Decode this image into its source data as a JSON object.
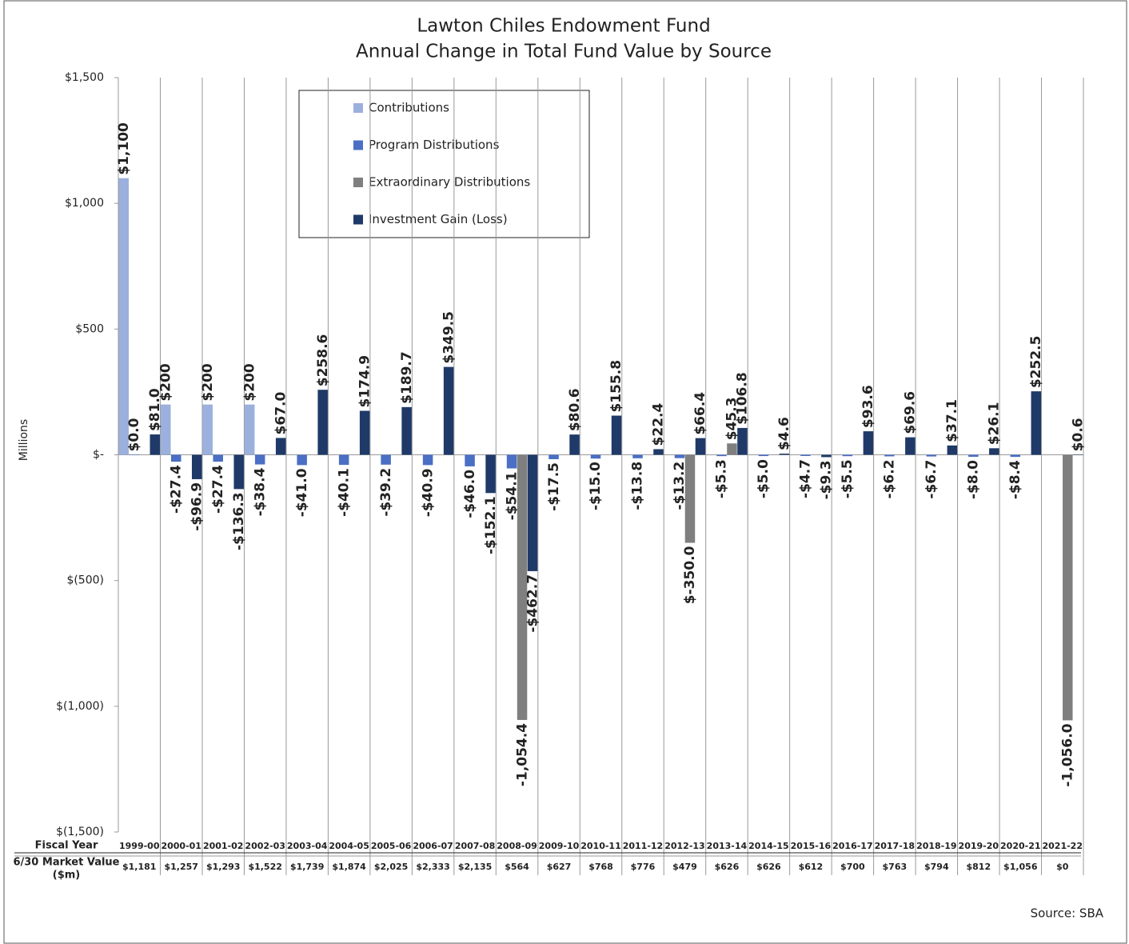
{
  "chart_data": {
    "type": "bar",
    "title": [
      "Lawton Chiles Endowment Fund",
      "Annual Change in Total Fund Value by Source"
    ],
    "ylabel": "Millions",
    "source": "Source: SBA",
    "categories": [
      "1999-00",
      "2000-01",
      "2001-02",
      "2002-03",
      "2003-04",
      "2004-05",
      "2005-06",
      "2006-07",
      "2007-08",
      "2008-09",
      "2009-10",
      "2010-11",
      "2011-12",
      "2012-13",
      "2013-14",
      "2014-15",
      "2015-16",
      "2016-17",
      "2017-18",
      "2018-19",
      "2019-20",
      "2020-21",
      "2021-22"
    ],
    "ylim": [
      -1500,
      1500
    ],
    "yticks": [
      {
        "value": 1500,
        "label": "$1,500"
      },
      {
        "value": 1000,
        "label": "$1,000"
      },
      {
        "value": 500,
        "label": "$500"
      },
      {
        "value": 0,
        "label": "$-"
      },
      {
        "value": -500,
        "label": "$(500)"
      },
      {
        "value": -1000,
        "label": "$(1,000)"
      },
      {
        "value": -1500,
        "label": "$(1,500)"
      }
    ],
    "series": [
      {
        "name": "Contributions",
        "color": "#9bb0dc",
        "values": [
          1100,
          200,
          200,
          200,
          null,
          null,
          null,
          null,
          null,
          null,
          null,
          null,
          null,
          null,
          null,
          null,
          null,
          null,
          null,
          null,
          null,
          null,
          null
        ],
        "value_labels": [
          "$1,100",
          "$200",
          "$200",
          "$200",
          null,
          null,
          null,
          null,
          null,
          null,
          null,
          null,
          null,
          null,
          null,
          null,
          null,
          null,
          null,
          null,
          null,
          null,
          null
        ]
      },
      {
        "name": "Program Distributions",
        "color": "#4a6fc4",
        "values": [
          0.0,
          -27.4,
          -27.4,
          -38.4,
          -41.0,
          -40.1,
          -39.2,
          -40.9,
          -46.0,
          -54.1,
          -17.5,
          -15.0,
          -13.8,
          -13.2,
          -5.3,
          -5.0,
          -4.7,
          -5.5,
          -6.2,
          -6.7,
          -8.0,
          -8.4,
          null
        ],
        "value_labels": [
          "$0.0",
          "-$27.4",
          "-$27.4",
          "-$38.4",
          "-$41.0",
          "-$40.1",
          "-$39.2",
          "-$40.9",
          "-$46.0",
          "-$54.1",
          "-$17.5",
          "-$15.0",
          "-$13.8",
          "-$13.2",
          "-$5.3",
          "-$5.0",
          "-$4.7",
          "-$5.5",
          "-$6.2",
          "-$6.7",
          "-$8.0",
          "-$8.4",
          null
        ]
      },
      {
        "name": "Extraordinary Distributions",
        "color": "#7f7f7f",
        "values": [
          null,
          null,
          null,
          null,
          null,
          null,
          null,
          null,
          null,
          -1054.4,
          null,
          null,
          null,
          -350.0,
          45.3,
          null,
          null,
          null,
          null,
          null,
          null,
          null,
          -1056.0
        ],
        "value_labels": [
          null,
          null,
          null,
          null,
          null,
          null,
          null,
          null,
          null,
          "-1,054.4",
          null,
          null,
          null,
          "$-350.0",
          "$45.3",
          null,
          null,
          null,
          null,
          null,
          null,
          null,
          "-1,056.0"
        ]
      },
      {
        "name": "Investment Gain (Loss)",
        "color": "#1f3a68",
        "values": [
          81.0,
          -96.9,
          -136.3,
          67.0,
          258.6,
          174.9,
          189.7,
          349.5,
          -152.1,
          -462.7,
          80.6,
          155.8,
          22.4,
          66.4,
          106.8,
          4.6,
          -9.3,
          93.6,
          69.6,
          37.1,
          26.1,
          252.5,
          0.6
        ],
        "value_labels": [
          "$81.0",
          "-$96.9",
          "-$136.3",
          "$67.0",
          "$258.6",
          "$174.9",
          "$189.7",
          "$349.5",
          "-$152.1",
          "-$462.7",
          "$80.6",
          "$155.8",
          "$22.4",
          "$66.4",
          "$106.8",
          "$4.6",
          "-$9.3",
          "$93.6",
          "$69.6",
          "$37.1",
          "$26.1",
          "$252.5",
          "$0.6"
        ]
      }
    ],
    "table_headers": [
      "Fiscal Year",
      "6/30 Market Value",
      "($m)"
    ],
    "market_values": [
      "$1,181",
      "$1,257",
      "$1,293",
      "$1,522",
      "$1,739",
      "$1,874",
      "$2,025",
      "$2,333",
      "$2,135",
      "$564",
      "$627",
      "$768",
      "$776",
      "$479",
      "$626",
      "$626",
      "$612",
      "$700",
      "$763",
      "$794",
      "$812",
      "$1,056",
      "$0"
    ]
  }
}
